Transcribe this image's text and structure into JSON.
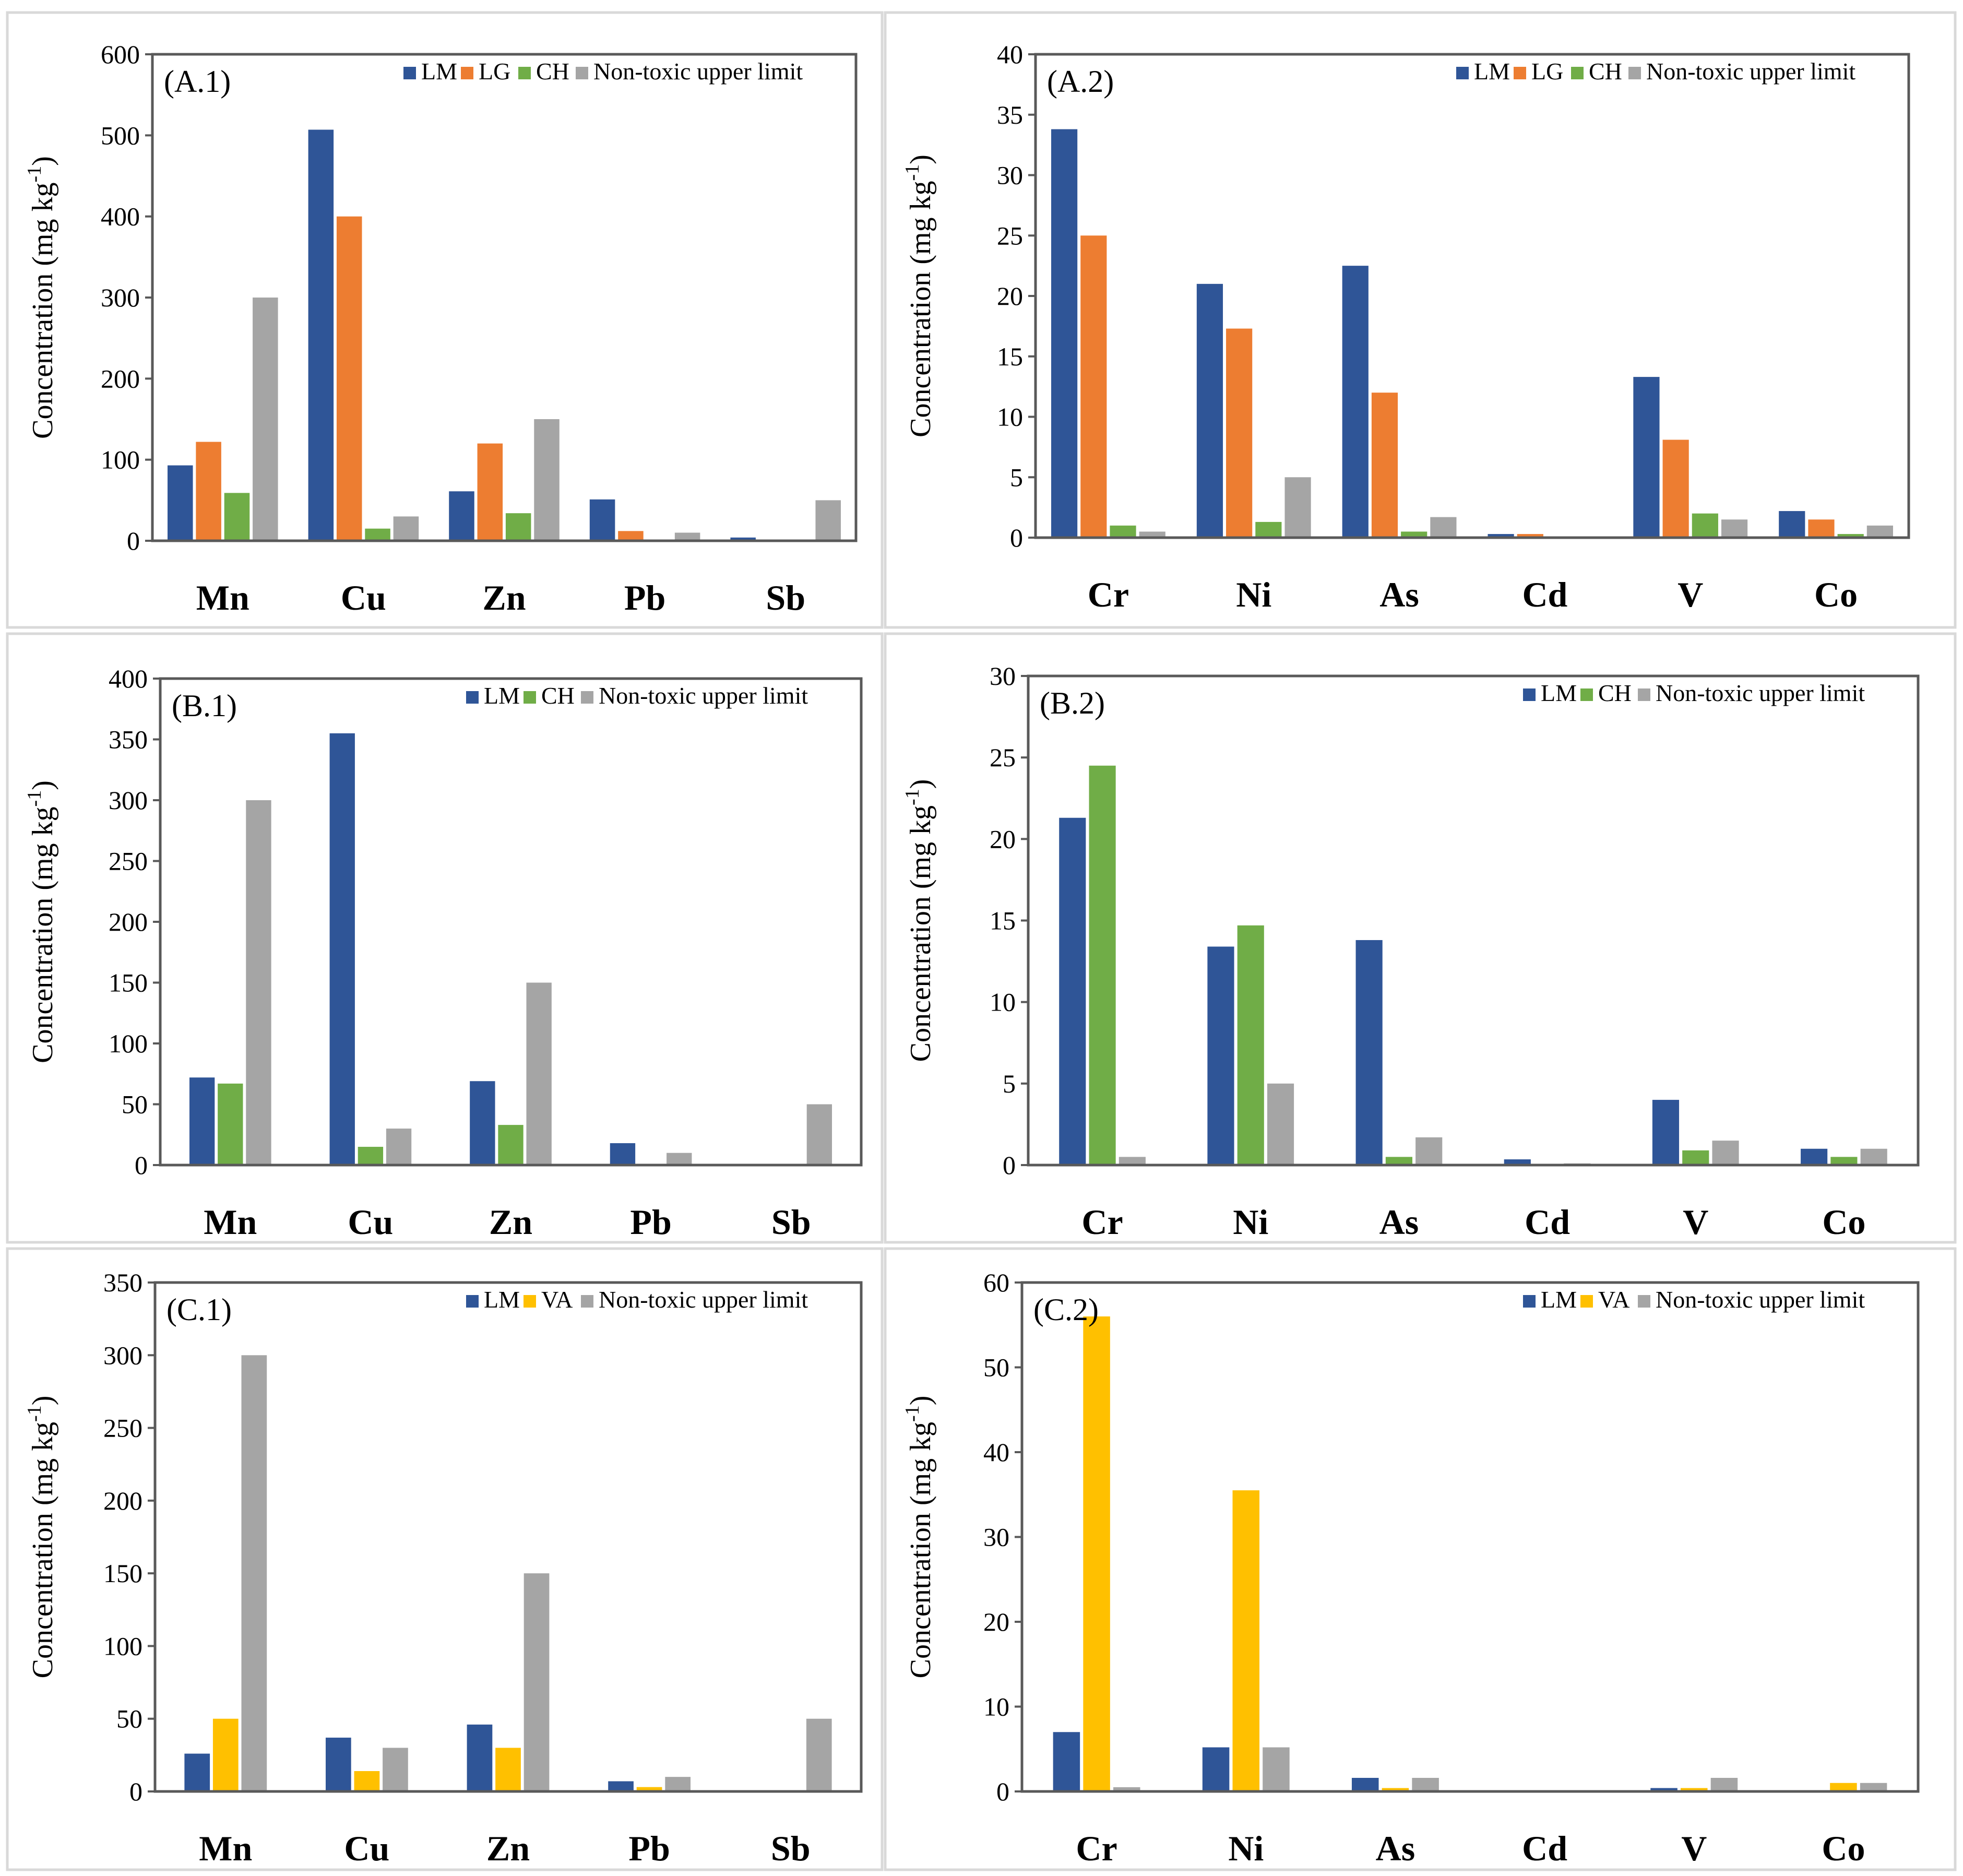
{
  "figure": {
    "series_colors": {
      "LM": "#2f5597",
      "LG": "#ed7d31",
      "CH": "#70ad47",
      "VA": "#ffc000",
      "Non-toxic upper limit": "#a5a5a5"
    },
    "ylabel_main": "Concentration (mg kg",
    "ylabel_sup": "-1",
    "ylabel_close": ")"
  },
  "chart_data": [
    {
      "type": "bar",
      "tag": "(A.1)",
      "categories": [
        "Mn",
        "Cu",
        "Zn",
        "Pb",
        "Sb"
      ],
      "ylim": [
        0,
        600
      ],
      "yticks": [
        "0",
        "100",
        "200",
        "300",
        "400",
        "500",
        "600"
      ],
      "ylabel": "Concentration (mg kg-1)",
      "legend": "top-right",
      "series": [
        {
          "name": "LM",
          "values": [
            93,
            507,
            61,
            51,
            4
          ]
        },
        {
          "name": "LG",
          "values": [
            122,
            400,
            120,
            12,
            1
          ]
        },
        {
          "name": "CH",
          "values": [
            59,
            15,
            34,
            1,
            0.5
          ]
        },
        {
          "name": "Non-toxic upper limit",
          "values": [
            300,
            30,
            150,
            10,
            50
          ]
        }
      ]
    },
    {
      "type": "bar",
      "tag": "(A.2)",
      "categories": [
        "Cr",
        "Ni",
        "As",
        "Cd",
        "V",
        "Co"
      ],
      "ylim": [
        0,
        40
      ],
      "yticks": [
        "0",
        "5",
        "10",
        "15",
        "20",
        "25",
        "30",
        "35",
        "40"
      ],
      "ylabel": "Concentration (mg kg-1)",
      "legend": "top-right",
      "series": [
        {
          "name": "LM",
          "values": [
            33.8,
            21,
            22.5,
            0.3,
            13.3,
            2.2
          ]
        },
        {
          "name": "LG",
          "values": [
            25,
            17.3,
            12,
            0.3,
            8.1,
            1.5
          ]
        },
        {
          "name": "CH",
          "values": [
            1,
            1.3,
            0.5,
            0.05,
            2,
            0.3
          ]
        },
        {
          "name": "Non-toxic upper limit",
          "values": [
            0.5,
            5,
            1.7,
            0.1,
            1.5,
            1
          ]
        }
      ]
    },
    {
      "type": "bar",
      "tag": "(B.1)",
      "categories": [
        "Mn",
        "Cu",
        "Zn",
        "Pb",
        "Sb"
      ],
      "ylim": [
        0,
        400
      ],
      "yticks": [
        "0",
        "50",
        "100",
        "150",
        "200",
        "250",
        "300",
        "350",
        "400"
      ],
      "ylabel": "Concentration (mg kg-1)",
      "legend": "top-right",
      "series": [
        {
          "name": "LM",
          "values": [
            72,
            355,
            69,
            18,
            0.5
          ]
        },
        {
          "name": "CH",
          "values": [
            67,
            15,
            33,
            1,
            0.3
          ]
        },
        {
          "name": "Non-toxic upper limit",
          "values": [
            300,
            30,
            150,
            10,
            50
          ]
        }
      ]
    },
    {
      "type": "bar",
      "tag": "(B.2)",
      "categories": [
        "Cr",
        "Ni",
        "As",
        "Cd",
        "V",
        "Co"
      ],
      "ylim": [
        0,
        30
      ],
      "yticks": [
        "0",
        "5",
        "10",
        "15",
        "20",
        "25",
        "30"
      ],
      "ylabel": "Concentration (mg kg-1)",
      "legend": "top-right",
      "series": [
        {
          "name": "LM",
          "values": [
            21.3,
            13.4,
            13.8,
            0.35,
            4,
            1
          ]
        },
        {
          "name": "CH",
          "values": [
            24.5,
            14.7,
            0.5,
            0.05,
            0.9,
            0.5
          ]
        },
        {
          "name": "Non-toxic upper limit",
          "values": [
            0.5,
            5,
            1.7,
            0.1,
            1.5,
            1
          ]
        }
      ]
    },
    {
      "type": "bar",
      "tag": "(C.1)",
      "categories": [
        "Mn",
        "Cu",
        "Zn",
        "Pb",
        "Sb"
      ],
      "ylim": [
        0,
        350
      ],
      "yticks": [
        "0",
        "50",
        "100",
        "150",
        "200",
        "250",
        "300",
        "350"
      ],
      "ylabel": "Concentration (mg kg-1)",
      "legend": "top-right",
      "series": [
        {
          "name": "LM",
          "values": [
            26,
            37,
            46,
            7,
            0.3
          ]
        },
        {
          "name": "VA",
          "values": [
            50,
            14,
            30,
            3,
            0.3
          ]
        },
        {
          "name": "Non-toxic upper limit",
          "values": [
            300,
            30,
            150,
            10,
            50
          ]
        }
      ]
    },
    {
      "type": "bar",
      "tag": "(C.2)",
      "categories": [
        "Cr",
        "Ni",
        "As",
        "Cd",
        "V",
        "Co"
      ],
      "ylim": [
        0,
        60
      ],
      "yticks": [
        "0",
        "10",
        "20",
        "30",
        "40",
        "50",
        "60"
      ],
      "ylabel": "Concentration (mg kg-1)",
      "legend": "top-right",
      "series": [
        {
          "name": "LM",
          "values": [
            7,
            5.2,
            1.6,
            0.05,
            0.4,
            0.1
          ]
        },
        {
          "name": "VA",
          "values": [
            56,
            35.5,
            0.4,
            0.05,
            0.4,
            1
          ]
        },
        {
          "name": "Non-toxic upper limit",
          "values": [
            0.5,
            5.2,
            1.6,
            0.1,
            1.6,
            1
          ]
        }
      ]
    }
  ]
}
